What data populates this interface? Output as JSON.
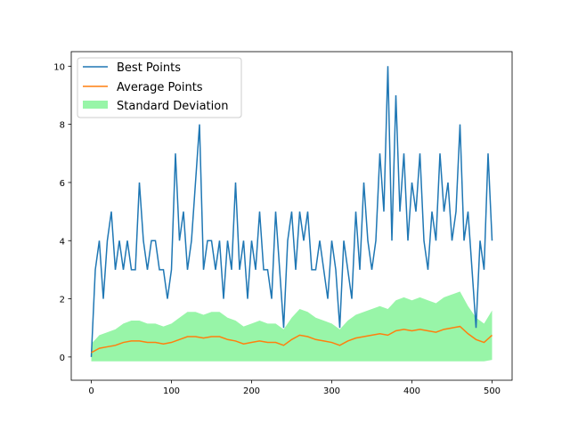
{
  "chart_data": {
    "type": "line",
    "title": "",
    "xlabel": "",
    "ylabel": "",
    "xlim": [
      -25,
      525
    ],
    "ylim": [
      -0.8,
      10.5
    ],
    "xticks": [
      0,
      100,
      200,
      300,
      400,
      500
    ],
    "yticks": [
      0,
      2,
      4,
      6,
      8,
      10
    ],
    "legend_position": "top-left",
    "grid": false,
    "series": [
      {
        "name": "Best Points",
        "color": "#1f77b4",
        "x_step": 5,
        "values": [
          0,
          3,
          4,
          2,
          4,
          5,
          3,
          4,
          3,
          4,
          3,
          3,
          6,
          4,
          3,
          4,
          4,
          3,
          3,
          2,
          3,
          7,
          4,
          5,
          3,
          4,
          6,
          8,
          3,
          4,
          4,
          3,
          4,
          2,
          4,
          3,
          6,
          3,
          4,
          2,
          4,
          3,
          5,
          3,
          3,
          2,
          5,
          3,
          1,
          4,
          5,
          3,
          5,
          4,
          5,
          3,
          3,
          4,
          3,
          2,
          4,
          3,
          1,
          4,
          3,
          2,
          5,
          3,
          6,
          4,
          3,
          4,
          7,
          5,
          10,
          4,
          9,
          5,
          7,
          4,
          6,
          5,
          7,
          4,
          3,
          5,
          4,
          7,
          5,
          6,
          4,
          5,
          8,
          4,
          5,
          3,
          1,
          4,
          3,
          7,
          4
        ]
      },
      {
        "name": "Average Points",
        "color": "#ff7f0e",
        "x_step": 10,
        "values": [
          0.15,
          0.3,
          0.35,
          0.4,
          0.5,
          0.55,
          0.55,
          0.5,
          0.5,
          0.45,
          0.5,
          0.6,
          0.7,
          0.7,
          0.65,
          0.7,
          0.7,
          0.6,
          0.55,
          0.45,
          0.5,
          0.55,
          0.5,
          0.5,
          0.4,
          0.6,
          0.75,
          0.7,
          0.6,
          0.55,
          0.5,
          0.4,
          0.55,
          0.65,
          0.7,
          0.75,
          0.8,
          0.75,
          0.9,
          0.95,
          0.9,
          0.95,
          0.9,
          0.85,
          0.95,
          1.0,
          1.05,
          0.8,
          0.6,
          0.5,
          0.75
        ]
      },
      {
        "name": "Standard Deviation",
        "color": "#98f5a8",
        "x_step": 10,
        "values": [
          0.3,
          0.45,
          0.5,
          0.55,
          0.65,
          0.7,
          0.7,
          0.65,
          0.65,
          0.6,
          0.65,
          0.75,
          0.85,
          0.85,
          0.8,
          0.85,
          0.85,
          0.75,
          0.7,
          0.6,
          0.65,
          0.7,
          0.65,
          0.65,
          0.55,
          0.75,
          0.9,
          0.85,
          0.75,
          0.7,
          0.65,
          0.55,
          0.7,
          0.8,
          0.85,
          0.9,
          0.95,
          0.9,
          1.05,
          1.1,
          1.05,
          1.1,
          1.05,
          1.0,
          1.1,
          1.15,
          1.2,
          0.95,
          0.75,
          0.65,
          0.85
        ]
      }
    ]
  }
}
